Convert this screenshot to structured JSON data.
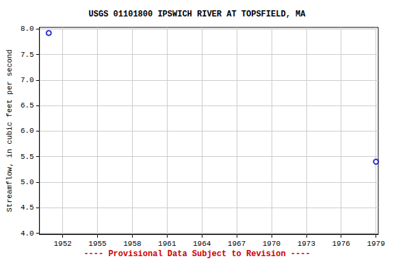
{
  "chart_data": {
    "type": "scatter",
    "title": "USGS 01101800 IPSWICH RIVER AT TOPSFIELD, MA",
    "y_label": "Streamflow, in cubic feet per second",
    "annotation": "---- Provisional Data Subject to Revision ----",
    "x": [
      1950.8,
      1979.0
    ],
    "values": [
      7.92,
      5.4
    ],
    "color": "#0000cc",
    "marker": "circle_open",
    "xlim": [
      1950,
      1979.2
    ],
    "xticks": [
      1952,
      1955,
      1958,
      1961,
      1964,
      1967,
      1970,
      1973,
      1976,
      1979
    ],
    "ylim": [
      3.98,
      8.03
    ],
    "yticks": [
      {
        "value": 4,
        "label": "4.0"
      },
      {
        "value": 4.5,
        "label": "4.5"
      },
      {
        "value": 5,
        "label": "5.0"
      },
      {
        "value": 5.5,
        "label": "5.5"
      },
      {
        "value": 6,
        "label": "6.0"
      },
      {
        "value": 6.5,
        "label": "6.5"
      },
      {
        "value": 7,
        "label": "7.0"
      },
      {
        "value": 7.5,
        "label": "7.5"
      },
      {
        "value": 8,
        "label": "8.0"
      }
    ],
    "grid": true
  }
}
